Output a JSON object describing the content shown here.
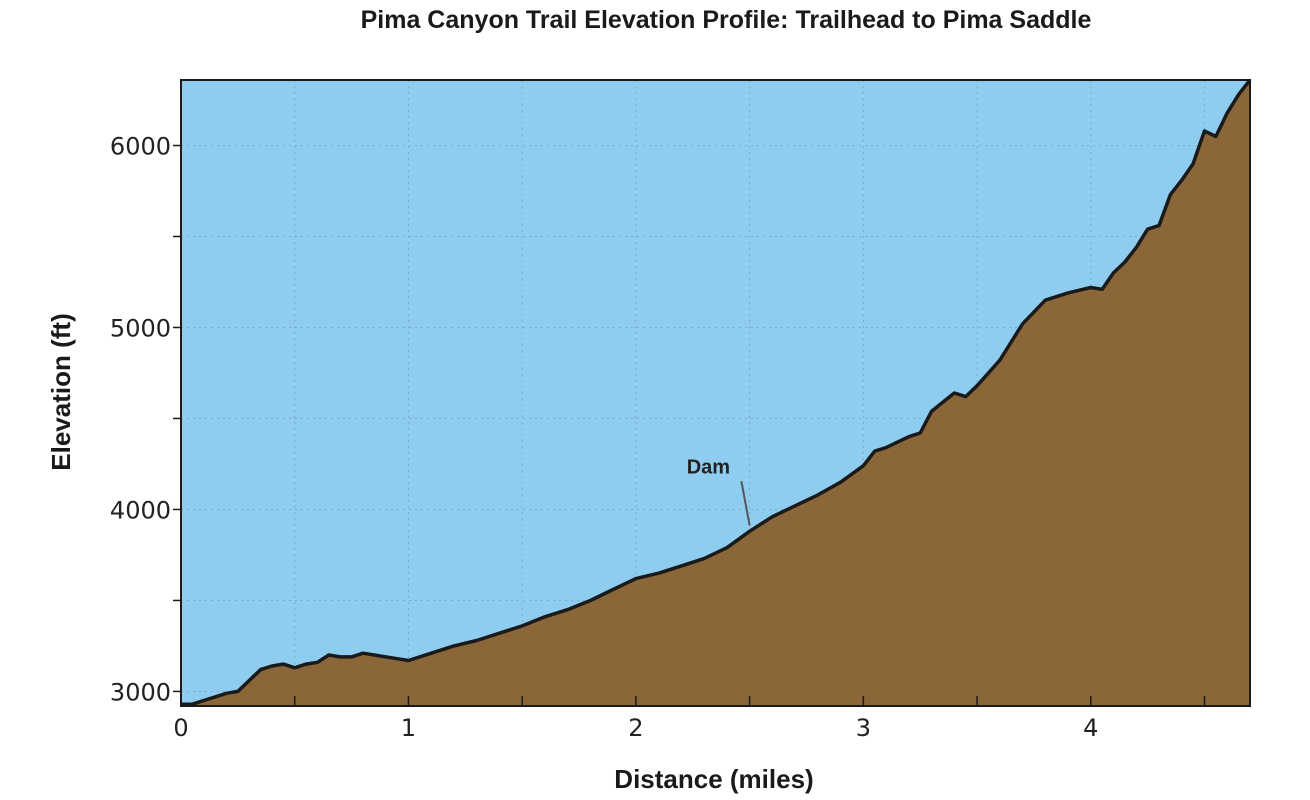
{
  "chart_data": {
    "type": "area",
    "title": "Pima Canyon Trail Elevation Profile: Trailhead to Pima Saddle",
    "xlabel": "Distance (miles)",
    "ylabel": "Elevation (ft)",
    "xlim": [
      0,
      4.7
    ],
    "ylim": [
      2920,
      6360
    ],
    "x_ticks_major": [
      0,
      1,
      2,
      3,
      4
    ],
    "x_tick_labels": [
      "0",
      "1",
      "2",
      "3",
      "4"
    ],
    "x_ticks_minor": [
      0.5,
      1.5,
      2.5,
      3.5,
      4.5
    ],
    "y_ticks_major": [
      3000,
      4000,
      5000,
      6000
    ],
    "y_tick_labels": [
      "3000",
      "4000",
      "5000",
      "6000"
    ],
    "y_ticks_minor": [
      3500,
      4500,
      5500
    ],
    "grid": true,
    "colors": {
      "sky": "#8ecdf0",
      "terrain": "#8b6639",
      "profile_line": "#1a1a1a",
      "annotation_line": "#555555"
    },
    "annotation": {
      "label": "Dam",
      "x": 2.5,
      "y": 3890,
      "label_x": 2.2,
      "label_y": 4210
    },
    "x": [
      0,
      0.05,
      0.1,
      0.15,
      0.2,
      0.25,
      0.3,
      0.35,
      0.4,
      0.45,
      0.5,
      0.55,
      0.6,
      0.65,
      0.7,
      0.75,
      0.8,
      0.85,
      0.9,
      0.95,
      1.0,
      1.1,
      1.2,
      1.3,
      1.4,
      1.5,
      1.6,
      1.7,
      1.8,
      1.9,
      2.0,
      2.1,
      2.2,
      2.3,
      2.4,
      2.5,
      2.6,
      2.7,
      2.8,
      2.9,
      3.0,
      3.05,
      3.1,
      3.2,
      3.25,
      3.3,
      3.4,
      3.45,
      3.5,
      3.6,
      3.7,
      3.8,
      3.9,
      4.0,
      4.05,
      4.1,
      4.15,
      4.2,
      4.25,
      4.3,
      4.35,
      4.4,
      4.45,
      4.5,
      4.55,
      4.6,
      4.65,
      4.7
    ],
    "y": [
      2930,
      2930,
      2950,
      2970,
      2990,
      3000,
      3060,
      3120,
      3140,
      3150,
      3130,
      3150,
      3160,
      3200,
      3190,
      3190,
      3210,
      3200,
      3190,
      3180,
      3170,
      3210,
      3250,
      3280,
      3320,
      3360,
      3410,
      3450,
      3500,
      3560,
      3620,
      3650,
      3690,
      3730,
      3790,
      3880,
      3960,
      4020,
      4080,
      4150,
      4240,
      4320,
      4340,
      4400,
      4420,
      4540,
      4640,
      4620,
      4680,
      4820,
      5020,
      5150,
      5190,
      5220,
      5210,
      5300,
      5360,
      5440,
      5540,
      5560,
      5730,
      5810,
      5900,
      6080,
      6050,
      6180,
      6280,
      6360
    ]
  }
}
